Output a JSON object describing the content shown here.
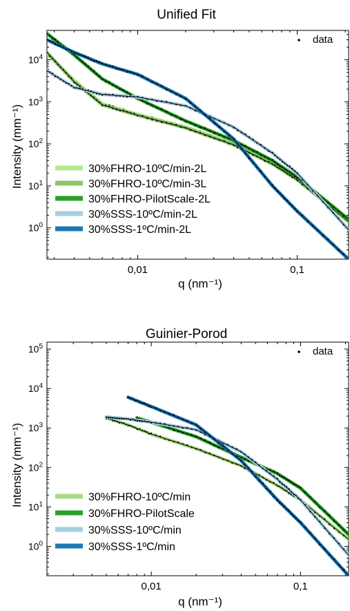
{
  "chart_data": [
    {
      "type": "line",
      "title": "Unified Fit",
      "xlabel": "q (nm⁻¹)",
      "ylabel": "Intensity (mm⁻¹)",
      "xscale": "log",
      "yscale": "log",
      "xlim": [
        0.0027,
        0.21
      ],
      "ylim": [
        0.18,
        50000
      ],
      "grid": false,
      "legend_position": "bottom-left",
      "x_ticks": [
        {
          "value": 0.01,
          "label": "0,01"
        },
        {
          "value": 0.1,
          "label": "0,1"
        }
      ],
      "y_ticks": [
        {
          "value": 1,
          "base": "10",
          "exp": "0"
        },
        {
          "value": 10,
          "base": "10",
          "exp": "1"
        },
        {
          "value": 100,
          "base": "10",
          "exp": "2"
        },
        {
          "value": 1000,
          "base": "10",
          "exp": "3"
        },
        {
          "value": 10000,
          "base": "10",
          "exp": "4"
        }
      ],
      "data_legend_label": "data",
      "series": [
        {
          "name": "30%FHRO-10ºC/min-2L",
          "color": "#b2eb8a",
          "x": [
            0.0027,
            0.004,
            0.006,
            0.01,
            0.02,
            0.04,
            0.07,
            0.1,
            0.21
          ],
          "y": [
            14000,
            3200,
            900,
            500,
            250,
            100,
            35,
            15,
            1.5
          ]
        },
        {
          "name": "30%FHRO-10ºC/min-3L",
          "color": "#8fc46a",
          "x": [
            0.0027,
            0.004,
            0.006,
            0.01,
            0.02,
            0.04,
            0.07,
            0.1,
            0.21
          ],
          "y": [
            15000,
            3000,
            850,
            480,
            240,
            95,
            33,
            14,
            1.4
          ]
        },
        {
          "name": "30%FHRO-PilotScale-2L",
          "color": "#2ca02c",
          "x": [
            0.0027,
            0.004,
            0.006,
            0.01,
            0.02,
            0.04,
            0.07,
            0.1,
            0.21
          ],
          "y": [
            42000,
            13000,
            3500,
            1200,
            350,
            120,
            40,
            16,
            1.6
          ]
        },
        {
          "name": "30%SSS-10ºC/min-2L",
          "color": "#a6cee3",
          "x": [
            0.0027,
            0.004,
            0.006,
            0.01,
            0.02,
            0.04,
            0.07,
            0.1,
            0.21
          ],
          "y": [
            5500,
            2200,
            1500,
            1300,
            800,
            250,
            60,
            20,
            0.9
          ]
        },
        {
          "name": "30%SSS-1ºC/min-2L",
          "color": "#1f78b4",
          "x": [
            0.0027,
            0.004,
            0.006,
            0.01,
            0.02,
            0.04,
            0.07,
            0.1,
            0.21
          ],
          "y": [
            30000,
            15000,
            8000,
            4500,
            1200,
            130,
            10,
            2.5,
            0.18
          ]
        }
      ]
    },
    {
      "type": "line",
      "title": "Guinier-Porod",
      "xlabel": "q (nm⁻¹)",
      "ylabel": "Intensity (mm⁻¹)",
      "xscale": "log",
      "yscale": "log",
      "xlim": [
        0.002,
        0.21
      ],
      "ylim": [
        0.18,
        150000
      ],
      "grid": false,
      "legend_position": "bottom-left",
      "x_ticks": [
        {
          "value": 0.01,
          "label": "0,01"
        },
        {
          "value": 0.1,
          "label": "0,1"
        }
      ],
      "y_ticks": [
        {
          "value": 1,
          "base": "10",
          "exp": "0"
        },
        {
          "value": 10,
          "base": "10",
          "exp": "1"
        },
        {
          "value": 100,
          "base": "10",
          "exp": "2"
        },
        {
          "value": 1000,
          "base": "10",
          "exp": "3"
        },
        {
          "value": 10000,
          "base": "10",
          "exp": "4"
        },
        {
          "value": 100000,
          "base": "10",
          "exp": "5"
        }
      ],
      "data_legend_label": "data",
      "series": [
        {
          "name": "30%FHRO-10ºC/min",
          "color": "#a8dc84",
          "x": [
            0.005,
            0.007,
            0.01,
            0.02,
            0.04,
            0.07,
            0.1,
            0.21
          ],
          "y": [
            1800,
            1200,
            700,
            300,
            110,
            35,
            15,
            1.5
          ]
        },
        {
          "name": "30%FHRO-PilotScale",
          "color": "#2ca02c",
          "x": [
            0.008,
            0.01,
            0.02,
            0.04,
            0.07,
            0.1,
            0.21
          ],
          "y": [
            1800,
            1400,
            600,
            180,
            70,
            30,
            2
          ]
        },
        {
          "name": "30%SSS-10ºC/min",
          "color": "#a6cee3",
          "x": [
            0.005,
            0.007,
            0.01,
            0.02,
            0.04,
            0.07,
            0.1,
            0.21
          ],
          "y": [
            1900,
            1700,
            1400,
            900,
            250,
            50,
            15,
            0.6
          ]
        },
        {
          "name": "30%SSS-1ºC/min",
          "color": "#1f78b4",
          "x": [
            0.007,
            0.01,
            0.02,
            0.04,
            0.07,
            0.1,
            0.21
          ],
          "y": [
            6000,
            3500,
            1200,
            150,
            15,
            4,
            0.18
          ]
        }
      ]
    }
  ]
}
